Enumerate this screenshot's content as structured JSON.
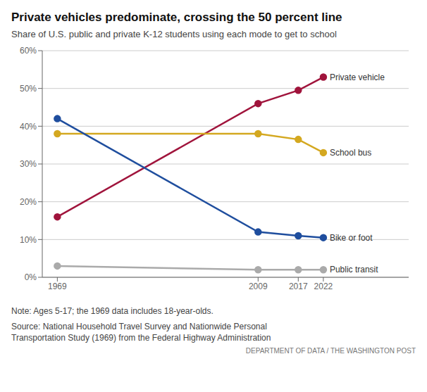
{
  "chart_data": {
    "type": "line",
    "title": "Private vehicles predominate, crossing the 50 percent line",
    "subtitle": "Share of U.S. public and private K-12 students using each mode to get to school",
    "x": [
      1969,
      2009,
      2017,
      2022
    ],
    "series": [
      {
        "name": "Private vehicle",
        "color": "#A0143C",
        "values": [
          16,
          46,
          49.5,
          53
        ]
      },
      {
        "name": "School bus",
        "color": "#D4A820",
        "values": [
          38,
          38,
          36.5,
          33
        ]
      },
      {
        "name": "Bike or foot",
        "color": "#1F4E9E",
        "values": [
          42,
          12,
          11,
          10.5
        ]
      },
      {
        "name": "Public transit",
        "color": "#AAAAAA",
        "values": [
          3,
          2,
          2,
          2
        ]
      }
    ],
    "xlim": [
      1966,
      2039
    ],
    "xticks": [
      1969,
      2009,
      2017,
      2022
    ],
    "ylim": [
      0,
      60
    ],
    "yticks": [
      {
        "value": 0,
        "label": "0%"
      },
      {
        "value": 10,
        "label": "10%"
      },
      {
        "value": 20,
        "label": "20%"
      },
      {
        "value": 30,
        "label": "30%"
      },
      {
        "value": 40,
        "label": "40%"
      },
      {
        "value": 50,
        "label": "50%"
      },
      {
        "value": 60,
        "label": "60%"
      }
    ],
    "grid": true,
    "marker": "circle",
    "annotations": [
      "Note: Ages 5-17; the 1969 data includes 18-year-olds.",
      "Source: National Household Travel Survey and Nationwide Personal\nTransportation Study (1969) from the Federal Highway Administration",
      "DEPARTMENT OF DATA / THE WASHINGTON POST"
    ]
  }
}
